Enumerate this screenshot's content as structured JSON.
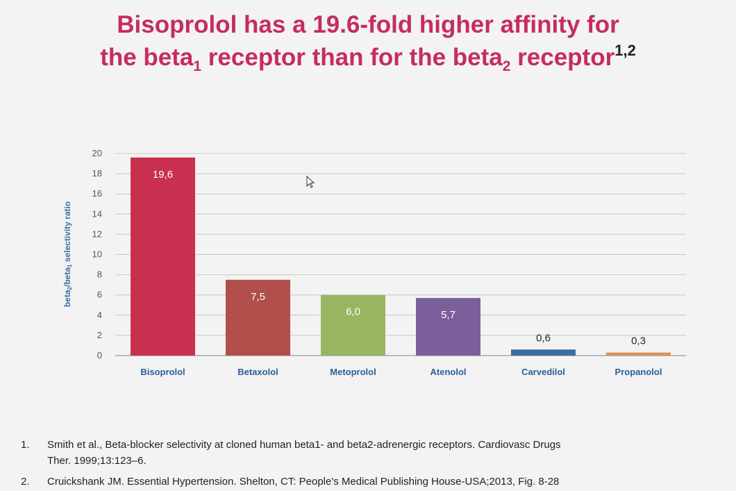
{
  "title": {
    "line1": "Bisoprolol has a 19.6-fold higher affinity for",
    "line2_pre": "the beta",
    "line2_sub1": "1",
    "line2_mid": " receptor than for the beta",
    "line2_sub2": "2",
    "line2_post": " receptor",
    "line2_sup": "1,2"
  },
  "colors": {
    "title": "#c52d5c",
    "axis_label": "#3a6ea5",
    "category_label": "#2c5d98",
    "gridline": "#c8c8c8"
  },
  "chart_data": {
    "type": "bar",
    "ylabel_parts": [
      "beta",
      "2",
      "/beta",
      "1",
      " selectivity ratio"
    ],
    "ylim": [
      0,
      20
    ],
    "yticks": [
      0,
      2,
      4,
      6,
      8,
      10,
      12,
      14,
      16,
      18,
      20
    ],
    "grid": true,
    "categories": [
      "Bisoprolol",
      "Betaxolol",
      "Metoprolol",
      "Atenolol",
      "Carvedilol",
      "Propanolol"
    ],
    "values": [
      19.6,
      7.5,
      6.0,
      5.7,
      0.6,
      0.3
    ],
    "value_labels": [
      "19,6",
      "7,5",
      "6,0",
      "5,7",
      "0,6",
      "0,3"
    ],
    "colors": [
      "#c9304f",
      "#b04f4b",
      "#98b561",
      "#7b5f9c",
      "#3b6da4",
      "#d9935a"
    ]
  },
  "references": [
    {
      "num": "1.",
      "line1": "Smith et al., Beta-blocker selectivity at cloned human beta1- and beta2-adrenergic receptors. Cardiovasc Drugs",
      "line2": "Ther. 1999;13:123–6."
    },
    {
      "num": "2.",
      "line1": "Cruickshank JM. Essential Hypertension. Shelton, CT: People's Medical Publishing House-USA;2013, Fig. 8-28",
      "line2": ""
    }
  ]
}
